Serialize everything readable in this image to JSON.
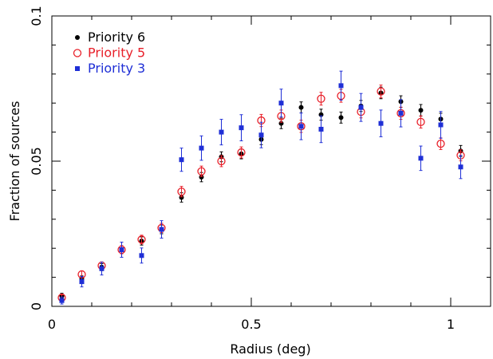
{
  "chart_data": {
    "type": "scatter",
    "xlabel": "Radius (deg)",
    "ylabel": "Fraction of sources",
    "xlim": [
      0,
      1.1
    ],
    "ylim": [
      0,
      0.1
    ],
    "x_ticks": [
      {
        "value": 0,
        "label": "0"
      },
      {
        "value": 0.5,
        "label": "0.5"
      },
      {
        "value": 1,
        "label": "1"
      }
    ],
    "y_ticks": [
      {
        "value": 0,
        "label": "0"
      },
      {
        "value": 0.05,
        "label": "0.05"
      },
      {
        "value": 0.1,
        "label": "0.1"
      }
    ],
    "x_minor_step": 0.1,
    "y_minor_step": 0.01,
    "legend_position": "top-left",
    "series": [
      {
        "name": "Priority 6",
        "color": "#000000",
        "marker": "filled-circle",
        "x": [
          0.025,
          0.075,
          0.125,
          0.175,
          0.225,
          0.275,
          0.325,
          0.375,
          0.425,
          0.475,
          0.525,
          0.575,
          0.625,
          0.675,
          0.725,
          0.775,
          0.825,
          0.875,
          0.925,
          0.975,
          1.025
        ],
        "y": [
          0.0035,
          0.0095,
          0.0135,
          0.0195,
          0.0225,
          0.0265,
          0.0375,
          0.0445,
          0.0515,
          0.0525,
          0.0575,
          0.063,
          0.0685,
          0.066,
          0.065,
          0.069,
          0.0735,
          0.0705,
          0.0675,
          0.0645,
          0.0535
        ],
        "err": [
          0.001,
          0.001,
          0.0012,
          0.0013,
          0.0014,
          0.0015,
          0.0016,
          0.0016,
          0.0017,
          0.0017,
          0.0018,
          0.0018,
          0.0019,
          0.0019,
          0.0019,
          0.0019,
          0.002,
          0.002,
          0.002,
          0.002,
          0.0019
        ]
      },
      {
        "name": "Priority 5",
        "color": "#e8202a",
        "marker": "open-circle",
        "x": [
          0.025,
          0.075,
          0.125,
          0.175,
          0.225,
          0.275,
          0.325,
          0.375,
          0.425,
          0.475,
          0.525,
          0.575,
          0.625,
          0.675,
          0.725,
          0.775,
          0.825,
          0.875,
          0.925,
          0.975,
          1.025
        ],
        "y": [
          0.003,
          0.011,
          0.014,
          0.0195,
          0.023,
          0.027,
          0.0395,
          0.0465,
          0.05,
          0.053,
          0.064,
          0.0655,
          0.062,
          0.0715,
          0.0725,
          0.067,
          0.074,
          0.0665,
          0.0635,
          0.056,
          0.052
        ],
        "err": [
          0.001,
          0.0012,
          0.0013,
          0.0014,
          0.0015,
          0.0016,
          0.0018,
          0.0018,
          0.0019,
          0.0019,
          0.0021,
          0.0021,
          0.0021,
          0.0022,
          0.0022,
          0.0021,
          0.0022,
          0.0021,
          0.0021,
          0.002,
          0.0019
        ]
      },
      {
        "name": "Priority 3",
        "color": "#1f2fd6",
        "marker": "filled-square",
        "x": [
          0.025,
          0.075,
          0.125,
          0.175,
          0.225,
          0.275,
          0.325,
          0.375,
          0.425,
          0.475,
          0.525,
          0.575,
          0.625,
          0.675,
          0.725,
          0.775,
          0.825,
          0.875,
          0.925,
          0.975,
          1.025
        ],
        "y": [
          0.002,
          0.0085,
          0.013,
          0.0195,
          0.0175,
          0.0265,
          0.0505,
          0.0545,
          0.06,
          0.0615,
          0.059,
          0.07,
          0.062,
          0.061,
          0.076,
          0.0685,
          0.063,
          0.0665,
          0.051,
          0.0625,
          0.048
        ],
        "err": [
          0.0012,
          0.0018,
          0.0022,
          0.0026,
          0.0026,
          0.003,
          0.004,
          0.0042,
          0.0044,
          0.0045,
          0.0044,
          0.0048,
          0.0046,
          0.0046,
          0.005,
          0.0048,
          0.0046,
          0.0047,
          0.0042,
          0.0046,
          0.004
        ]
      }
    ]
  }
}
